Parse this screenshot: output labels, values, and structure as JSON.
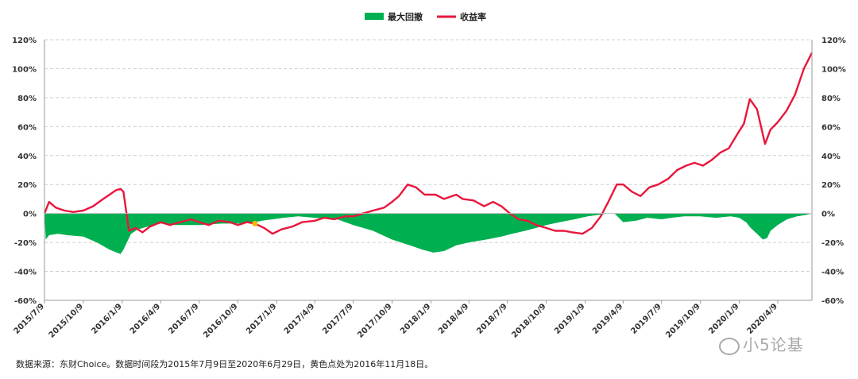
{
  "chart_data": {
    "type": "line",
    "legend": [
      {
        "name": "最大回撤",
        "color": "#00b050",
        "kind": "area"
      },
      {
        "name": "收益率",
        "color": "#e8173c",
        "kind": "line"
      }
    ],
    "legend_position": "top-center",
    "grid": true,
    "y_left_ticks": [
      "120%",
      "100%",
      "80%",
      "60%",
      "40%",
      "20%",
      "0%",
      "-20%",
      "-40%",
      "-60%"
    ],
    "y_right_ticks": [
      "120%",
      "100%",
      "80%",
      "60%",
      "40%",
      "20%",
      "0%",
      "-20%",
      "-40%",
      "-60%"
    ],
    "ylim": [
      -60,
      120
    ],
    "x_ticks": [
      "2015/7/9",
      "2015/10/9",
      "2016/1/9",
      "2016/4/9",
      "2016/7/9",
      "2016/10/9",
      "2017/1/9",
      "2017/4/9",
      "2017/7/9",
      "2017/10/9",
      "2018/1/9",
      "2018/4/9",
      "2018/7/9",
      "2018/10/9",
      "2019/1/9",
      "2019/4/9",
      "2019/7/9",
      "2019/10/9",
      "2020/1/9",
      "2020/4/9"
    ],
    "xlim": [
      "2015-07-09",
      "2020-06-29"
    ],
    "series": [
      {
        "name": "收益率",
        "x": [
          "2015-07-09",
          "2015-07-20",
          "2015-08-05",
          "2015-08-25",
          "2015-09-15",
          "2015-10-09",
          "2015-11-01",
          "2015-11-25",
          "2015-12-10",
          "2015-12-25",
          "2016-01-05",
          "2016-01-12",
          "2016-01-25",
          "2016-02-10",
          "2016-02-26",
          "2016-03-15",
          "2016-04-09",
          "2016-05-01",
          "2016-05-25",
          "2016-06-20",
          "2016-07-09",
          "2016-08-01",
          "2016-08-25",
          "2016-09-20",
          "2016-10-09",
          "2016-10-30",
          "2016-11-18",
          "2016-12-10",
          "2016-12-30",
          "2017-01-20",
          "2017-02-15",
          "2017-03-10",
          "2017-04-09",
          "2017-05-01",
          "2017-05-25",
          "2017-06-20",
          "2017-07-09",
          "2017-08-01",
          "2017-08-25",
          "2017-09-20",
          "2017-10-09",
          "2017-10-25",
          "2017-11-15",
          "2017-12-05",
          "2017-12-25",
          "2018-01-20",
          "2018-02-09",
          "2018-03-10",
          "2018-03-25",
          "2018-04-20",
          "2018-05-15",
          "2018-06-05",
          "2018-06-25",
          "2018-07-15",
          "2018-08-05",
          "2018-08-25",
          "2018-09-15",
          "2018-10-09",
          "2018-10-30",
          "2018-11-20",
          "2018-12-10",
          "2019-01-03",
          "2019-01-25",
          "2019-02-15",
          "2019-03-05",
          "2019-03-25",
          "2019-04-09",
          "2019-04-30",
          "2019-05-20",
          "2019-06-10",
          "2019-07-01",
          "2019-07-25",
          "2019-08-15",
          "2019-09-05",
          "2019-09-25",
          "2019-10-15",
          "2019-11-05",
          "2019-11-25",
          "2019-12-15",
          "2020-01-05",
          "2020-01-20",
          "2020-02-03",
          "2020-02-20",
          "2020-03-10",
          "2020-03-23",
          "2020-04-09",
          "2020-04-30",
          "2020-05-20",
          "2020-06-10",
          "2020-06-29"
        ],
        "values": [
          0,
          8,
          4,
          2,
          1,
          2,
          5,
          10,
          13,
          16,
          17,
          15,
          -12,
          -10,
          -13,
          -9,
          -6,
          -8,
          -6,
          -4,
          -6,
          -8,
          -5,
          -6,
          -8,
          -6,
          -7,
          -10,
          -14,
          -11,
          -9,
          -6,
          -5,
          -3,
          -4,
          -2,
          -2,
          0,
          2,
          4,
          8,
          12,
          20,
          18,
          13,
          13,
          10,
          13,
          10,
          9,
          5,
          8,
          5,
          0,
          -4,
          -5,
          -8,
          -10,
          -12,
          -12,
          -13,
          -14,
          -10,
          -2,
          8,
          20,
          20,
          15,
          12,
          18,
          20,
          24,
          30,
          33,
          35,
          33,
          37,
          42,
          45,
          55,
          62,
          79,
          72,
          48,
          58,
          63,
          71,
          82,
          100,
          111
        ]
      },
      {
        "name": "最大回撤",
        "x": [
          "2015-07-09",
          "2015-07-12",
          "2015-07-20",
          "2015-08-10",
          "2015-09-01",
          "2015-10-09",
          "2015-11-10",
          "2015-12-10",
          "2016-01-05",
          "2016-01-12",
          "2016-01-20",
          "2016-01-30",
          "2016-02-15",
          "2016-03-10",
          "2016-04-09",
          "2016-05-15",
          "2016-07-09",
          "2016-09-01",
          "2016-10-09",
          "2016-11-18",
          "2016-12-05",
          "2016-12-30",
          "2017-01-25",
          "2017-03-01",
          "2017-04-09",
          "2017-06-01",
          "2017-07-09",
          "2017-08-25",
          "2017-10-09",
          "2017-11-20",
          "2017-12-20",
          "2018-01-15",
          "2018-02-09",
          "2018-03-10",
          "2018-04-09",
          "2018-05-20",
          "2018-06-25",
          "2018-07-20",
          "2018-08-20",
          "2018-09-15",
          "2018-10-09",
          "2018-11-10",
          "2018-12-15",
          "2019-01-15",
          "2019-02-10",
          "2019-03-05",
          "2019-03-20",
          "2019-04-09",
          "2019-05-10",
          "2019-06-05",
          "2019-07-09",
          "2019-08-01",
          "2019-09-01",
          "2019-10-09",
          "2019-11-15",
          "2019-12-20",
          "2020-01-09",
          "2020-01-25",
          "2020-02-05",
          "2020-02-20",
          "2020-03-05",
          "2020-03-15",
          "2020-03-23",
          "2020-04-09",
          "2020-05-01",
          "2020-05-25",
          "2020-06-15",
          "2020-06-29"
        ],
        "values": [
          0,
          -18,
          -15,
          -14,
          -15,
          -16,
          -20,
          -25,
          -28,
          -25,
          -20,
          -14,
          -11,
          -9,
          -7,
          -8,
          -8,
          -7,
          -7,
          -6,
          -5,
          -4,
          -3,
          -2,
          -3,
          -4,
          -8,
          -12,
          -18,
          -22,
          -25,
          -27,
          -26,
          -22,
          -20,
          -18,
          -16,
          -14,
          -12,
          -10,
          -8,
          -6,
          -4,
          -2,
          -1,
          0,
          0,
          -6,
          -5,
          -3,
          -4,
          -3,
          -2,
          -2,
          -3,
          -2,
          -3,
          -6,
          -10,
          -14,
          -18,
          -17,
          -12,
          -8,
          -4,
          -2,
          -1,
          0
        ]
      }
    ],
    "highlight_point": {
      "x": "2016-11-18",
      "y": -7,
      "color": "#f5b800"
    }
  },
  "footer": {
    "source_note": "数据来源：东财Choice。数据时间段为2015年7月9日至2020年6月29日，黄色点处为2016年11月18日。",
    "watermark": "小5论基"
  }
}
